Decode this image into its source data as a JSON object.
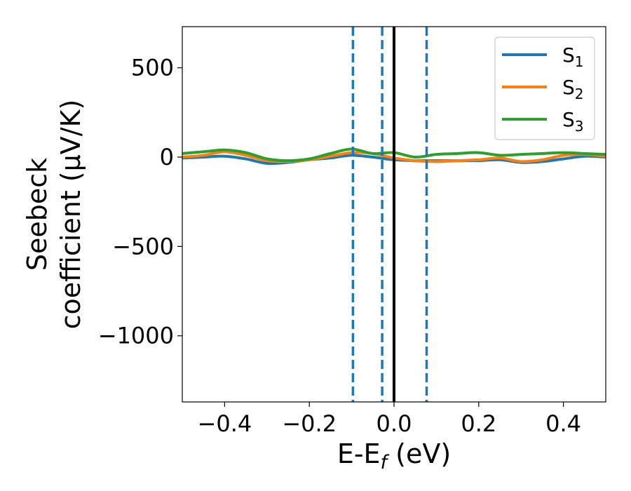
{
  "chart_data": {
    "type": "line",
    "title": "",
    "xlabel": {
      "main": "E-E",
      "sub": "f",
      "unit": " (eV)"
    },
    "ylabel": {
      "line1": "Seebeck",
      "line2": "coefficient  (μV/K)"
    },
    "xlim": [
      -0.5,
      0.5
    ],
    "ylim": [
      -1370,
      730
    ],
    "xticks": [
      -0.4,
      -0.2,
      0.0,
      0.2,
      0.4
    ],
    "xtick_labels": [
      "−0.4",
      "−0.2",
      "0.0",
      "0.2",
      "0.4"
    ],
    "yticks": [
      500,
      0,
      -500,
      -1000
    ],
    "ytick_labels": [
      "500",
      "0",
      "−500",
      "−1000"
    ],
    "grid": false,
    "legend_position": "top-right",
    "x": [
      -0.5,
      -0.45,
      -0.4,
      -0.35,
      -0.3,
      -0.25,
      -0.2,
      -0.15,
      -0.1,
      -0.05,
      0.0,
      0.05,
      0.1,
      0.15,
      0.2,
      0.25,
      0.3,
      0.35,
      0.4,
      0.45,
      0.5
    ],
    "series": [
      {
        "name": "S",
        "sub": "1",
        "color": "#1f77b4",
        "values": [
          -5,
          0,
          5,
          -10,
          -35,
          -30,
          -15,
          -5,
          10,
          0,
          -15,
          -20,
          -20,
          -20,
          -20,
          -15,
          -30,
          -25,
          -10,
          5,
          0
        ]
      },
      {
        "name": "S",
        "sub": "2",
        "color": "#ff7f0e",
        "values": [
          0,
          10,
          30,
          10,
          -20,
          -25,
          -15,
          5,
          25,
          20,
          -5,
          -20,
          -25,
          -20,
          -15,
          -5,
          -25,
          -15,
          10,
          15,
          5
        ]
      },
      {
        "name": "S",
        "sub": "3",
        "color": "#2ca02c",
        "values": [
          20,
          30,
          40,
          25,
          -10,
          -20,
          -10,
          20,
          45,
          20,
          25,
          0,
          15,
          20,
          25,
          10,
          15,
          20,
          25,
          20,
          15
        ]
      }
    ],
    "vlines": [
      {
        "x": -0.097,
        "style": "dashed",
        "color": "#1f77b4"
      },
      {
        "x": -0.028,
        "style": "dashed",
        "color": "#1f77b4"
      },
      {
        "x": 0.0,
        "style": "solid",
        "color": "#000000"
      },
      {
        "x": 0.077,
        "style": "dashed",
        "color": "#1f77b4"
      }
    ]
  }
}
